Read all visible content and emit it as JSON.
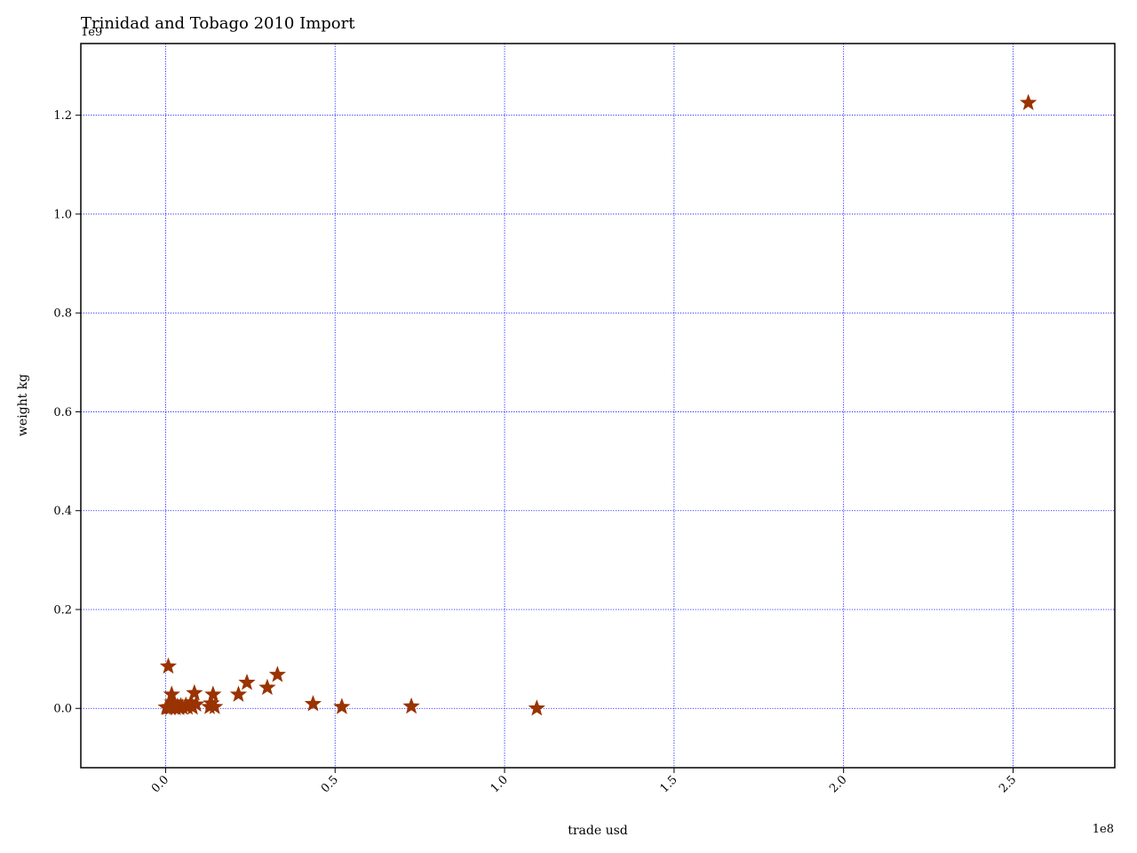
{
  "chart_data": {
    "type": "scatter",
    "title": "Trinidad and Tobago 2010 Import",
    "xlabel": "trade usd",
    "ylabel": "weight kg",
    "x_offset_label": "1e8",
    "y_offset_label": "1e9",
    "xlim": [
      -0.25,
      2.8
    ],
    "ylim": [
      -0.12,
      1.345
    ],
    "x_ticks": [
      0.0,
      0.5,
      1.0,
      1.5,
      2.0,
      2.5
    ],
    "x_tick_labels": [
      "0.0",
      "0.5",
      "1.0",
      "1.5",
      "2.0",
      "2.5"
    ],
    "y_ticks": [
      0.0,
      0.2,
      0.4,
      0.6,
      0.8,
      1.0,
      1.2
    ],
    "y_tick_labels": [
      "0.0",
      "0.2",
      "0.4",
      "0.6",
      "0.8",
      "1.0",
      "1.2"
    ],
    "grid": true,
    "grid_color": "#0000ff",
    "marker": "star",
    "marker_color": "#993300",
    "units_note": "x in units of 1e8 USD, y in units of 1e9 kg",
    "points": [
      {
        "x": 2.545,
        "y": 1.225
      },
      {
        "x": 1.095,
        "y": 0.0
      },
      {
        "x": 0.725,
        "y": 0.004
      },
      {
        "x": 0.52,
        "y": 0.003
      },
      {
        "x": 0.435,
        "y": 0.009
      },
      {
        "x": 0.33,
        "y": 0.068
      },
      {
        "x": 0.3,
        "y": 0.042
      },
      {
        "x": 0.24,
        "y": 0.052
      },
      {
        "x": 0.215,
        "y": 0.028
      },
      {
        "x": 0.145,
        "y": 0.003
      },
      {
        "x": 0.14,
        "y": 0.028
      },
      {
        "x": 0.135,
        "y": 0.01
      },
      {
        "x": 0.13,
        "y": 0.003
      },
      {
        "x": 0.085,
        "y": 0.031
      },
      {
        "x": 0.09,
        "y": 0.008
      },
      {
        "x": 0.08,
        "y": 0.002
      },
      {
        "x": 0.075,
        "y": 0.012
      },
      {
        "x": 0.065,
        "y": 0.002
      },
      {
        "x": 0.06,
        "y": 0.006
      },
      {
        "x": 0.05,
        "y": 0.002
      },
      {
        "x": 0.045,
        "y": 0.005
      },
      {
        "x": 0.04,
        "y": 0.001
      },
      {
        "x": 0.035,
        "y": 0.004
      },
      {
        "x": 0.03,
        "y": 0.001
      },
      {
        "x": 0.025,
        "y": 0.002
      },
      {
        "x": 0.02,
        "y": 0.012
      },
      {
        "x": 0.018,
        "y": 0.028
      },
      {
        "x": 0.015,
        "y": 0.001
      },
      {
        "x": 0.012,
        "y": 0.003
      },
      {
        "x": 0.008,
        "y": 0.085
      },
      {
        "x": 0.005,
        "y": 0.001
      },
      {
        "x": 0.002,
        "y": 0.002
      }
    ]
  }
}
